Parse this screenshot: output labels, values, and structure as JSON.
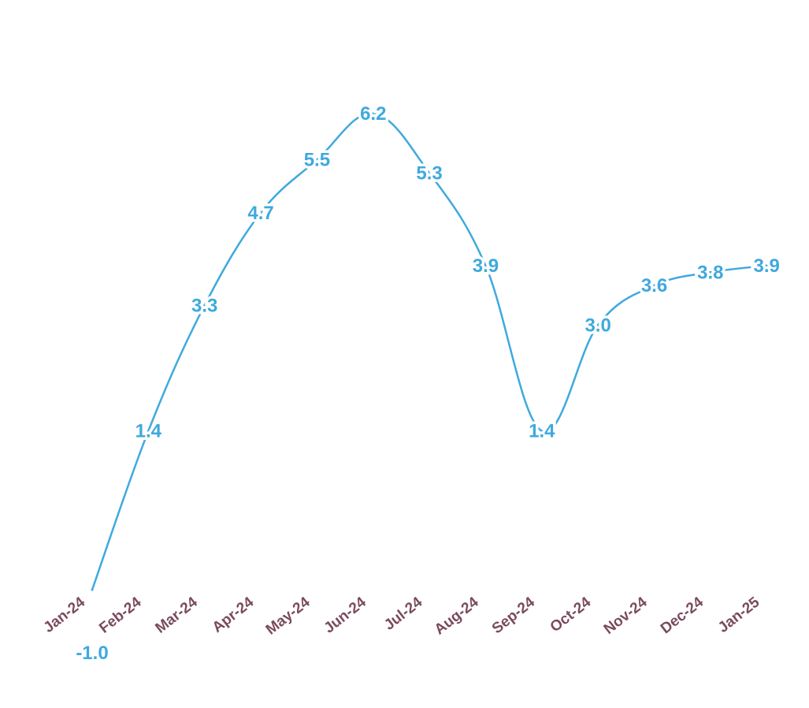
{
  "chart_data": {
    "type": "line",
    "title": "",
    "xlabel": "",
    "ylabel": "",
    "categories": [
      "Jan-24",
      "Feb-24",
      "Mar-24",
      "Apr-24",
      "May-24",
      "Jun-24",
      "Jul-24",
      "Aug-24",
      "Sep-24",
      "Oct-24",
      "Nov-24",
      "Dec-24",
      "Jan-25"
    ],
    "series": [
      {
        "values": [
          -1.0,
          1.4,
          3.3,
          4.7,
          5.5,
          6.2,
          5.3,
          3.9,
          1.4,
          3.0,
          3.6,
          3.8,
          3.9
        ],
        "labels": [
          "-1.0",
          "1.4",
          "3.3",
          "4.7",
          "5.5",
          "6.2",
          "5.3",
          "3.9",
          "1.4",
          "3.0",
          "3.6",
          "3.8",
          "3.9"
        ],
        "color": "#3fa9dd"
      }
    ],
    "ylim": [
      -1.0,
      6.2
    ],
    "grid": false,
    "legend": "none",
    "tick_label_color": "#7a4a5e"
  }
}
